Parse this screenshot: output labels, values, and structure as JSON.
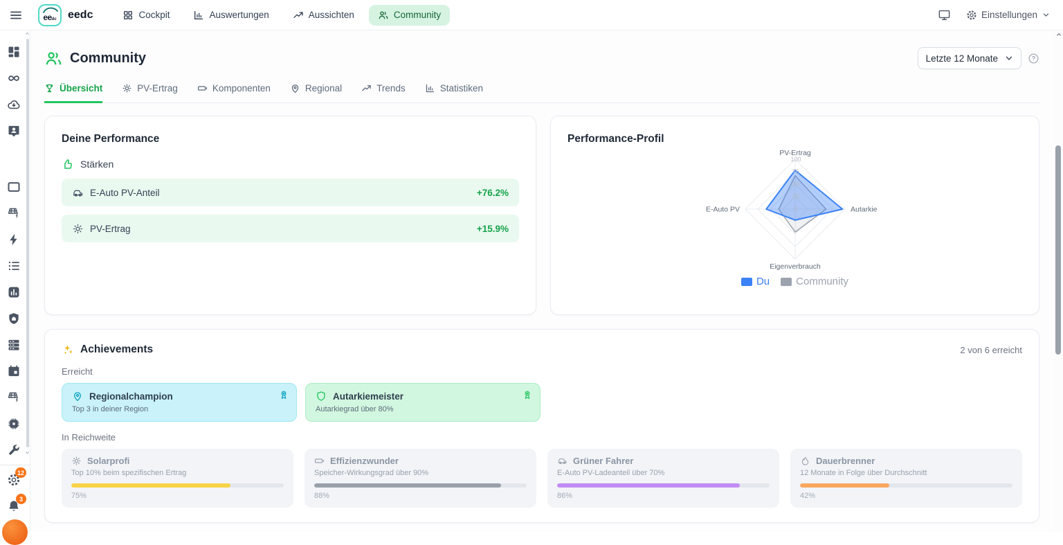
{
  "navbar": {
    "brand": "eedc",
    "logo": {
      "text": "ee",
      "sub": "dc"
    },
    "items": [
      {
        "label": "Cockpit"
      },
      {
        "label": "Auswertungen"
      },
      {
        "label": "Aussichten"
      },
      {
        "label": "Community"
      }
    ],
    "settings_label": "Einstellungen"
  },
  "sidebar": {
    "badges": {
      "settings_count": "12",
      "notifications_count": "3"
    }
  },
  "page": {
    "title": "Community",
    "period_select": "Letzte 12 Monate",
    "tabs": [
      "Übersicht",
      "PV-Ertrag",
      "Komponenten",
      "Regional",
      "Trends",
      "Statistiken"
    ]
  },
  "performance_card": {
    "title": "Deine Performance",
    "strengths_label": "Stärken",
    "rows": [
      {
        "label": "E-Auto PV-Anteil",
        "value": "+76.2%"
      },
      {
        "label": "PV-Ertrag",
        "value": "+15.9%"
      }
    ]
  },
  "profile_card": {
    "title": "Performance-Profil"
  },
  "chart_data": {
    "type": "radar",
    "categories": [
      "PV-Ertrag",
      "Autarkie",
      "Eigenverbrauch",
      "E-Auto PV"
    ],
    "max": 100,
    "ticks": [
      0,
      25,
      50,
      75,
      100
    ],
    "series": [
      {
        "name": "Du",
        "values": [
          78,
          95,
          22,
          58
        ],
        "color": "#3b82f6",
        "fill_opacity": 0.38
      },
      {
        "name": "Community",
        "values": [
          67,
          62,
          46,
          33
        ],
        "color": "#9ca3af",
        "fill_opacity": 0.15
      }
    ],
    "legend_position": "bottom"
  },
  "achievements": {
    "title": "Achievements",
    "count_label": "2 von 6 erreicht",
    "reached_label": "Erreicht",
    "reached": [
      {
        "name": "Regionalchampion",
        "desc": "Top 3 in deiner Region"
      },
      {
        "name": "Autarkiemeister",
        "desc": "Autarkiegrad über 80%"
      }
    ],
    "in_reach_label": "In Reichweite",
    "in_reach": [
      {
        "name": "Solarprofi",
        "desc": "Top 10% beim spezifischen Ertrag",
        "progress": "75%",
        "color": "#f8d347"
      },
      {
        "name": "Effizienzwunder",
        "desc": "Speicher-Wirkungsgrad über 90%",
        "progress": "88%",
        "color": "#9aa0aa"
      },
      {
        "name": "Grüner Fahrer",
        "desc": "E-Auto PV-Ladeanteil über 70%",
        "progress": "86%",
        "color": "#c18bf5"
      },
      {
        "name": "Dauerbrenner",
        "desc": "12 Monate in Folge über Durchschnitt",
        "progress": "42%",
        "color": "#f8a760"
      }
    ]
  },
  "theme": {
    "accent_green": "#22c55e",
    "badge_orange": "#f97316",
    "active_pill_bg": "#d6f3e2"
  }
}
